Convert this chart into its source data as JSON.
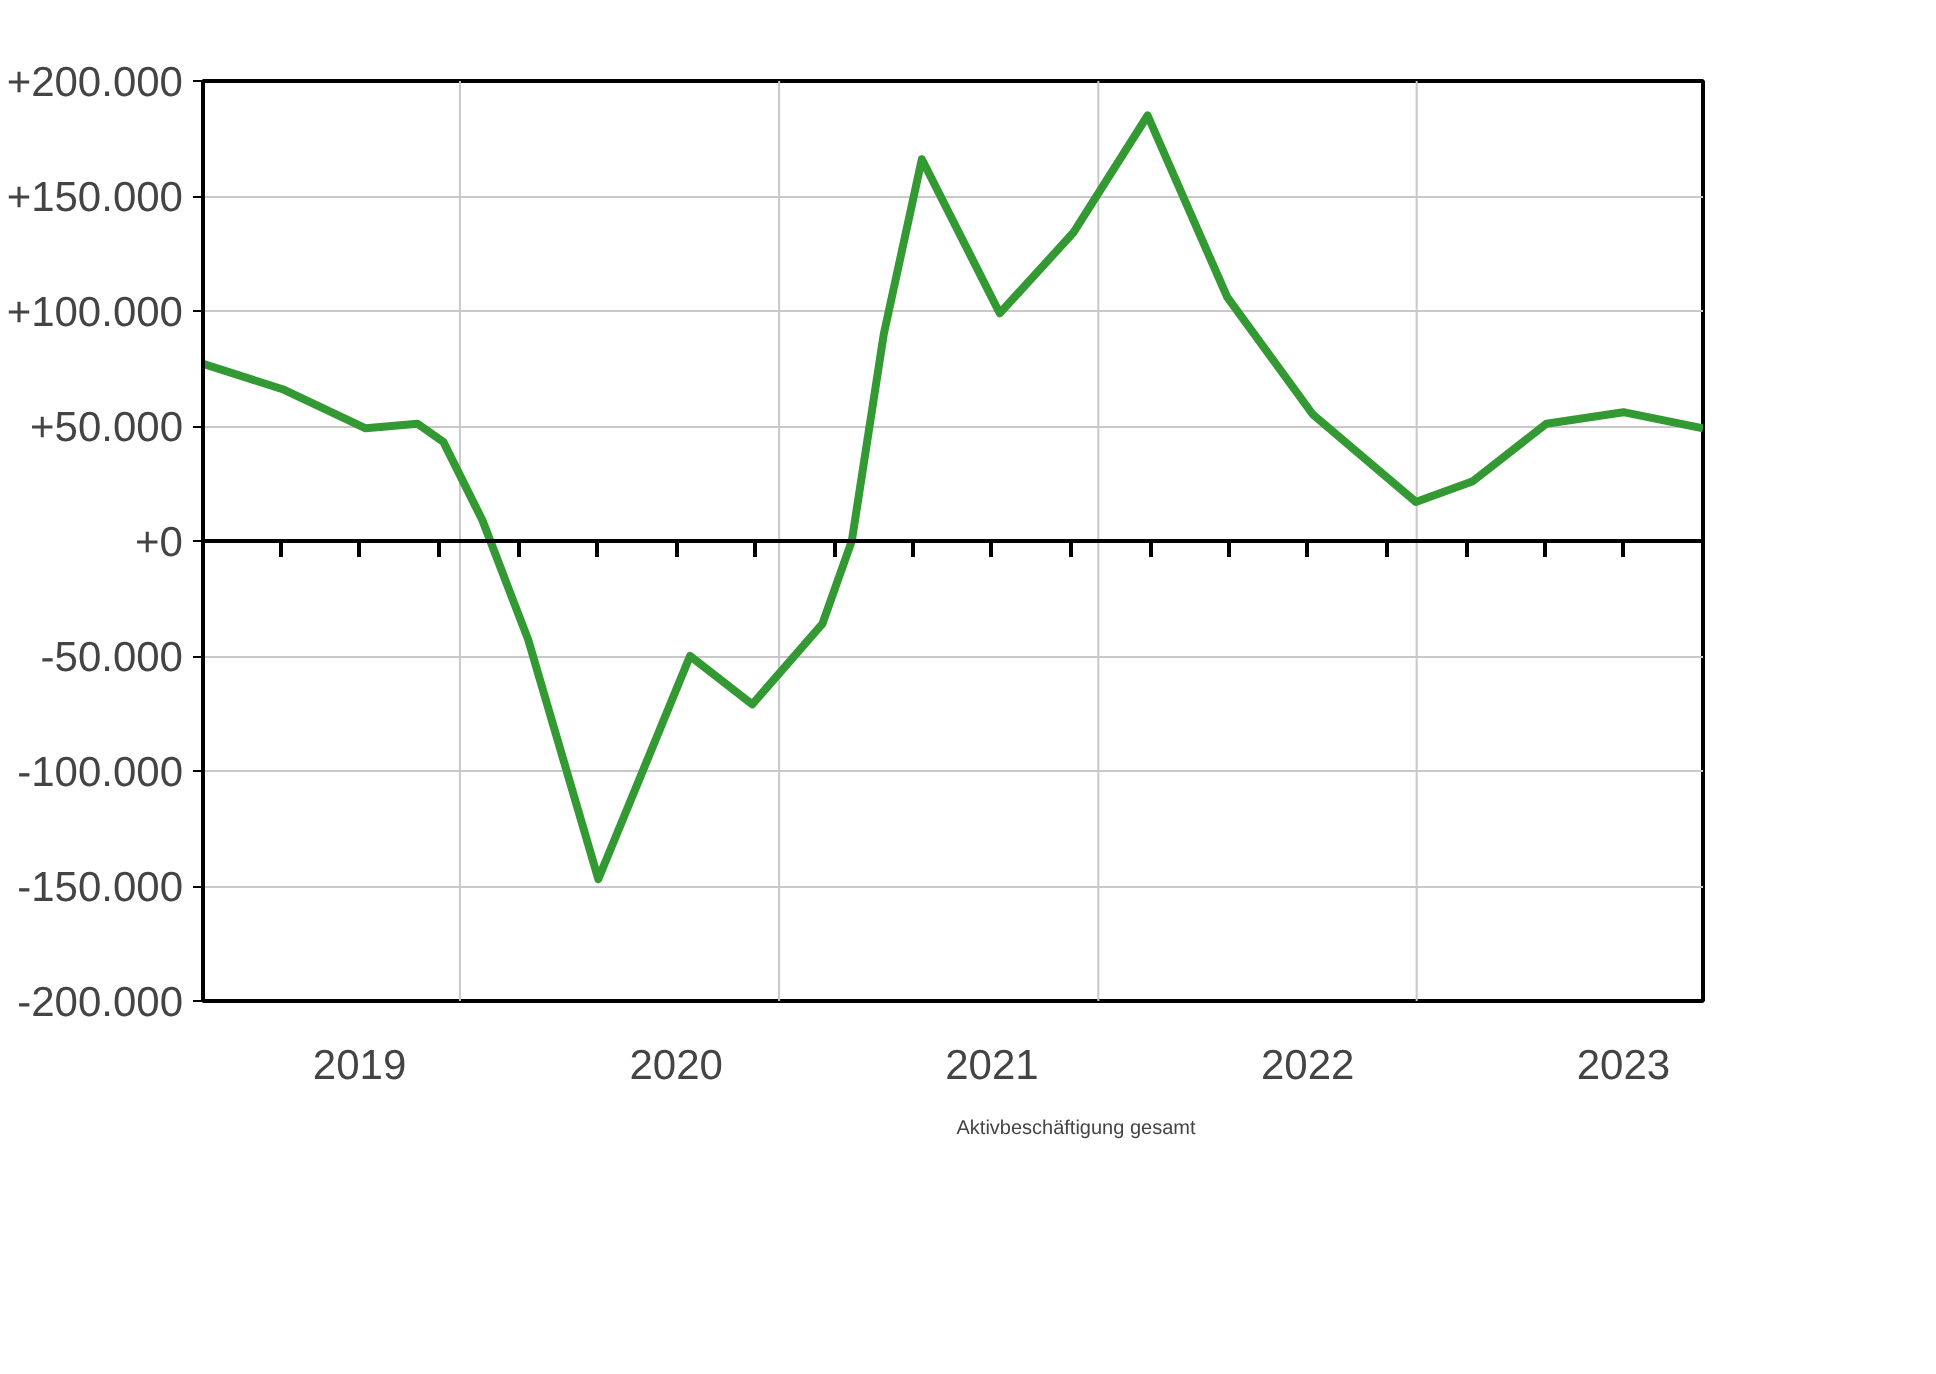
{
  "chart_data": {
    "type": "line",
    "x": [
      "2019-01-01",
      "2019-04-03",
      "2019-07-08",
      "2019-09-06",
      "2019-10-06",
      "2019-11-20",
      "2020-01-12",
      "2020-04-02",
      "2020-07-17",
      "2020-09-27",
      "2020-12-17",
      "2021-01-20",
      "2021-02-26",
      "2021-04-11",
      "2021-07-10",
      "2021-10-03",
      "2021-12-28",
      "2022-03-30",
      "2022-07-07",
      "2022-11-03",
      "2023-01-08",
      "2023-04-03",
      "2023-07-01",
      "2023-10-01"
    ],
    "series": [
      {
        "name": "Aktivbeschäftigung gesamt",
        "color": "#339933",
        "values": [
          77000,
          66000,
          49000,
          51000,
          43000,
          9000,
          -43000,
          -147000,
          -50000,
          -71000,
          -36000,
          0,
          90000,
          166000,
          99000,
          134000,
          185000,
          106000,
          55000,
          17000,
          26000,
          51000,
          56000,
          49000
        ]
      }
    ],
    "xlim": [
      "2019-01-01",
      "2023-10-01"
    ],
    "xticks": [
      {
        "value": "2019-04-01",
        "label": null
      },
      {
        "value": "2019-07-01",
        "label": "2019"
      },
      {
        "value": "2019-10-01",
        "label": null
      },
      {
        "value": "2020-01-01",
        "label": null
      },
      {
        "value": "2020-04-01",
        "label": null
      },
      {
        "value": "2020-07-01",
        "label": "2020"
      },
      {
        "value": "2020-10-01",
        "label": null
      },
      {
        "value": "2021-01-01",
        "label": null
      },
      {
        "value": "2021-04-01",
        "label": null
      },
      {
        "value": "2021-07-01",
        "label": "2021"
      },
      {
        "value": "2021-10-01",
        "label": null
      },
      {
        "value": "2022-01-01",
        "label": null
      },
      {
        "value": "2022-04-01",
        "label": null
      },
      {
        "value": "2022-07-01",
        "label": "2022"
      },
      {
        "value": "2022-10-01",
        "label": null
      },
      {
        "value": "2023-01-01",
        "label": null
      },
      {
        "value": "2023-04-01",
        "label": null
      },
      {
        "value": "2023-07-01",
        "label": "2023"
      }
    ],
    "ylim": [
      -200000,
      200000
    ],
    "yticks": [
      {
        "value": -200000,
        "label": "-200.000"
      },
      {
        "value": -150000,
        "label": "-150.000"
      },
      {
        "value": -100000,
        "label": "-100.000"
      },
      {
        "value": -50000,
        "label": "-50.000"
      },
      {
        "value": 0,
        "label": "+0"
      },
      {
        "value": 50000,
        "label": "+50.000"
      },
      {
        "value": 100000,
        "label": "+100.000"
      },
      {
        "value": 150000,
        "label": "+150.000"
      },
      {
        "value": 200000,
        "label": "+200.000"
      }
    ],
    "ref_lines": [
      {
        "axis": "x",
        "value": "2019-10-25",
        "label": null,
        "color": "#c8c8c8"
      },
      {
        "axis": "x",
        "value": "2020-10-28",
        "label": null,
        "color": "#c8c8c8"
      },
      {
        "axis": "x",
        "value": "2021-11-01",
        "label": null,
        "color": "#c8c8c8"
      },
      {
        "axis": "x",
        "value": "2022-11-04",
        "label": null,
        "color": "#c8c8c8"
      }
    ],
    "grid": "y",
    "legend": "bottom",
    "marker": "none",
    "line_style": "solid"
  }
}
